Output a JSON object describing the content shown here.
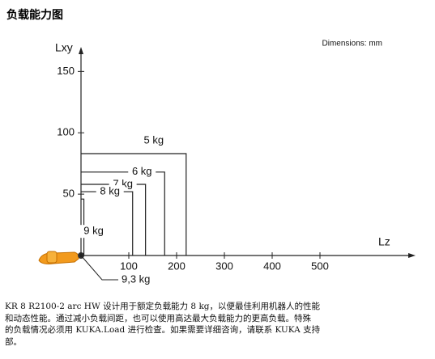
{
  "header": {
    "title": "负载能力图"
  },
  "chart_data": {
    "type": "line",
    "note_label": "Dimensions: mm",
    "xlabel": "Lz",
    "ylabel": "Lxy",
    "xlim": [
      0,
      700
    ],
    "ylim": [
      0,
      170
    ],
    "xticks": [
      100,
      200,
      300,
      400,
      500
    ],
    "yticks": [
      50,
      100,
      150
    ],
    "series": [
      {
        "name": "5 kg",
        "x": [
          0,
          220,
          220
        ],
        "values": [
          83,
          83,
          0
        ]
      },
      {
        "name": "6 kg",
        "x": [
          0,
          175,
          175
        ],
        "values": [
          68,
          68,
          0
        ]
      },
      {
        "name": "7 kg",
        "x": [
          0,
          135,
          135
        ],
        "values": [
          58,
          58,
          0
        ]
      },
      {
        "name": "8 kg",
        "x": [
          0,
          108,
          108
        ],
        "values": [
          52,
          52,
          0
        ]
      },
      {
        "name": "9 kg",
        "x": [
          0,
          6,
          6
        ],
        "values": [
          46,
          46,
          0
        ]
      },
      {
        "name": "9,3 kg",
        "x": [
          0
        ],
        "values": [
          0
        ]
      }
    ]
  },
  "paragraph": {
    "lines": [
      "KR 8 R2100-2 arc HW 设计用于额定负载能力 8 kg，以便最佳利用机器人的性能",
      "和动态性能。通过减小负载间距，也可以使用高达最大负载能力的更高负载。特殊",
      "的负载情况必须用 KUKA.Load 进行检查。如果需要详细咨询，请联系 KUKA 支持",
      "部。"
    ]
  }
}
